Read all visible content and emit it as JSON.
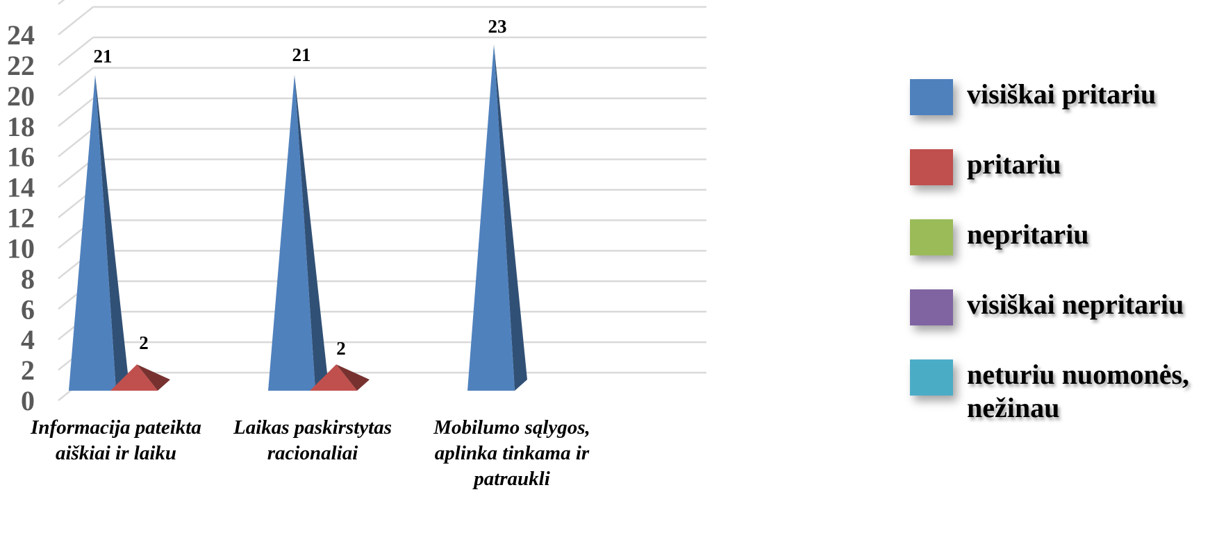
{
  "chart_data": {
    "type": "bar",
    "bar_shape": "3d-pyramid",
    "categories": [
      [
        "Informacija pateikta",
        "aiškiai ir laiku"
      ],
      [
        "Laikas paskirstytas",
        "racionaliai"
      ],
      [
        "Mobilumo sąlygos,",
        "aplinka tinkama ir",
        "patraukli"
      ]
    ],
    "series": [
      {
        "name": "visiškai pritariu",
        "color": "#4F81BD",
        "values": [
          21,
          21,
          23
        ]
      },
      {
        "name": "pritariu",
        "color": "#C0504D",
        "values": [
          2,
          2,
          0
        ]
      },
      {
        "name": "nepritariu",
        "color": "#9BBB59",
        "values": [
          0,
          0,
          0
        ]
      },
      {
        "name": "visiškai nepritariu",
        "color": "#8064A2",
        "values": [
          0,
          0,
          0
        ]
      },
      {
        "name": "neturiu nuomonės, nežinau",
        "color": "#4BACC6",
        "values": [
          0,
          0,
          0
        ]
      }
    ],
    "data_labels": [
      [
        21,
        21,
        23
      ],
      [
        2,
        2,
        null
      ]
    ],
    "ylim": [
      0,
      24
    ],
    "yticks": [
      0,
      2,
      4,
      6,
      8,
      10,
      12,
      14,
      16,
      18,
      20,
      22,
      24
    ],
    "grid": true,
    "legend": "right"
  },
  "legend": {
    "items": [
      {
        "label_lines": [
          "visiškai pritariu"
        ],
        "color": "#4F81BD"
      },
      {
        "label_lines": [
          "pritariu"
        ],
        "color": "#C0504D"
      },
      {
        "label_lines": [
          "nepritariu"
        ],
        "color": "#9BBB59"
      },
      {
        "label_lines": [
          "visiškai nepritariu"
        ],
        "color": "#8064A2"
      },
      {
        "label_lines": [
          "neturiu nuomonės,",
          "nežinau"
        ],
        "color": "#4BACC6"
      }
    ]
  }
}
